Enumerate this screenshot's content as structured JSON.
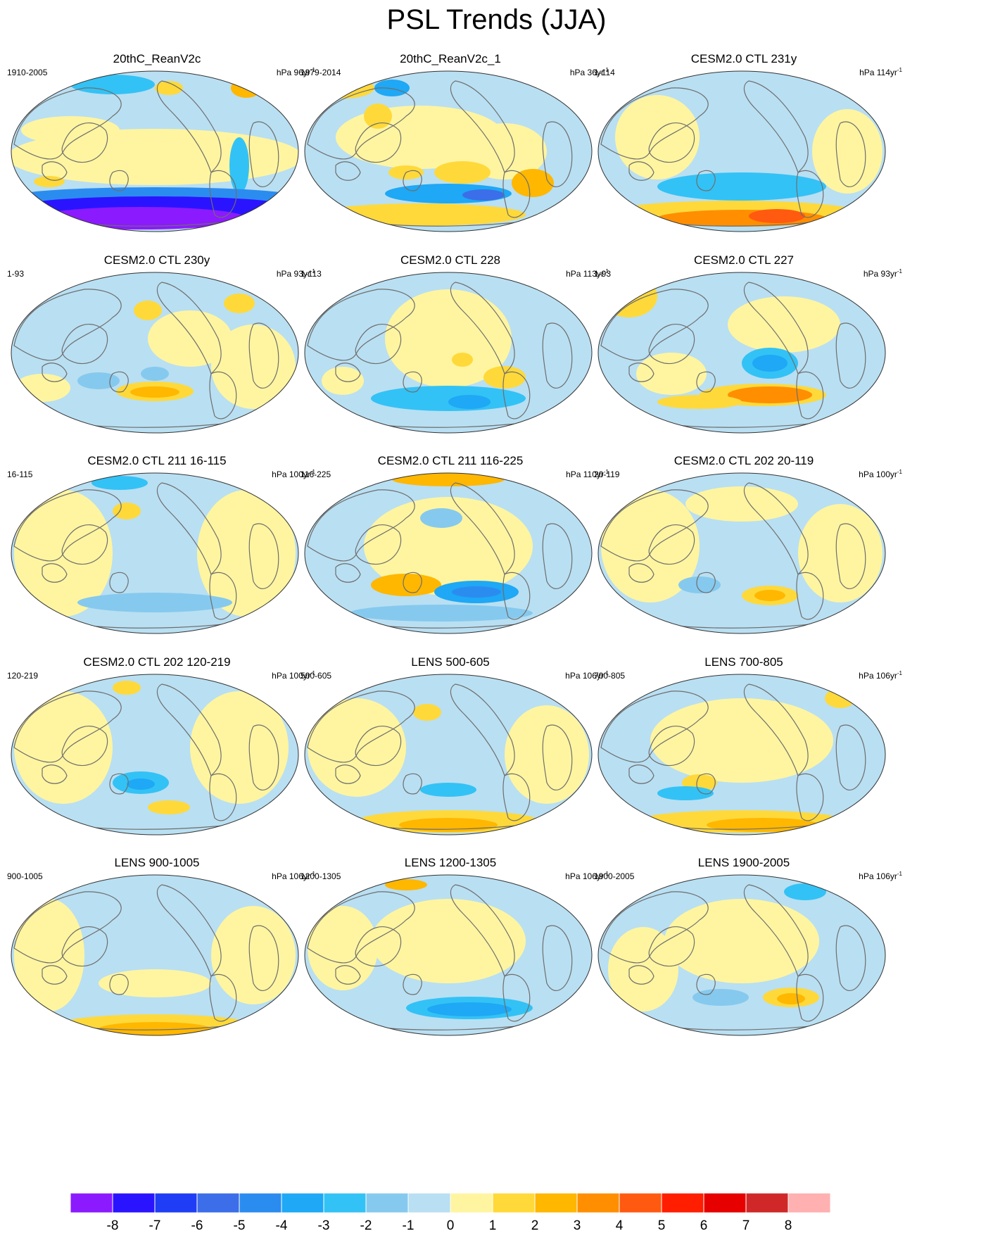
{
  "figure": {
    "title": "PSL Trends (JJA)"
  },
  "panels": [
    {
      "title": "20thC_ReanV2c",
      "period": "1910-2005",
      "units": "hPa 96yr",
      "exp": "-1",
      "pattern": "rean1"
    },
    {
      "title": "20thC_ReanV2c_1",
      "period": "1979-2014",
      "units": "hPa 36yr",
      "exp": "-1",
      "pattern": "rean2"
    },
    {
      "title": "CESM2.0 CTL 231y",
      "period": "1-114",
      "units": "hPa 114yr",
      "exp": "-1",
      "pattern": "ctl231"
    },
    {
      "title": "CESM2.0 CTL 230y",
      "period": "1-93",
      "units": "hPa 93yr",
      "exp": "-1",
      "pattern": "ctl230"
    },
    {
      "title": "CESM2.0 CTL 228",
      "period": "1-113",
      "units": "hPa 113yr",
      "exp": "-1",
      "pattern": "ctl228"
    },
    {
      "title": "CESM2.0 CTL 227",
      "period": "1-93",
      "units": "hPa 93yr",
      "exp": "-1",
      "pattern": "ctl227"
    },
    {
      "title": "CESM2.0 CTL 211 16-115",
      "period": "16-115",
      "units": "hPa 100yr",
      "exp": "-1",
      "pattern": "ctl211a"
    },
    {
      "title": "CESM2.0 CTL 211 116-225",
      "period": "116-225",
      "units": "hPa 110yr",
      "exp": "-1",
      "pattern": "ctl211b"
    },
    {
      "title": "CESM2.0 CTL 202 20-119",
      "period": "20-119",
      "units": "hPa 100yr",
      "exp": "-1",
      "pattern": "ctl202a"
    },
    {
      "title": "CESM2.0 CTL 202 120-219",
      "period": "120-219",
      "units": "hPa 100yr",
      "exp": "-1",
      "pattern": "ctl202b"
    },
    {
      "title": "LENS 500-605",
      "period": "500-605",
      "units": "hPa 106yr",
      "exp": "-1",
      "pattern": "lens500"
    },
    {
      "title": "LENS 700-805",
      "period": "700-805",
      "units": "hPa 106yr",
      "exp": "-1",
      "pattern": "lens700"
    },
    {
      "title": "LENS 900-1005",
      "period": "900-1005",
      "units": "hPa 106yr",
      "exp": "-1",
      "pattern": "lens900"
    },
    {
      "title": "LENS 1200-1305",
      "period": "1200-1305",
      "units": "hPa 106yr",
      "exp": "-1",
      "pattern": "lens1200"
    },
    {
      "title": "LENS 1900-2005",
      "period": "1900-2005",
      "units": "hPa 106yr",
      "exp": "-1",
      "pattern": "lens1900"
    }
  ],
  "colorbar": {
    "labels": [
      "-8",
      "-7",
      "-6",
      "-5",
      "-4",
      "-3",
      "-2",
      "-1",
      "0",
      "1",
      "2",
      "3",
      "4",
      "5",
      "6",
      "7",
      "8"
    ],
    "colors": [
      "#8c1aff",
      "#2a14ff",
      "#1f3df5",
      "#3b6ee8",
      "#2b8cf0",
      "#1ea8f5",
      "#33c2f5",
      "#86c9ee",
      "#b9dff2",
      "#fff5a0",
      "#ffd93a",
      "#ffb700",
      "#ff8f00",
      "#ff5a10",
      "#ff1e00",
      "#e60000",
      "#d02828",
      "#ffb0b0"
    ],
    "palette": {
      "neg1": "#b9dff2",
      "neg2": "#86c9ee",
      "neg3": "#33c2f5",
      "neg4": "#1ea8f5",
      "neg5": "#2b8cf0",
      "neg6": "#3b6ee8",
      "neg7": "#2a14ff",
      "neg8": "#8c1aff",
      "pos1": "#fff5a0",
      "pos2": "#ffd93a",
      "pos3": "#ffb700",
      "pos4": "#ff8f00",
      "pos5": "#ff5a10",
      "coast": "#6e6e6e"
    }
  }
}
